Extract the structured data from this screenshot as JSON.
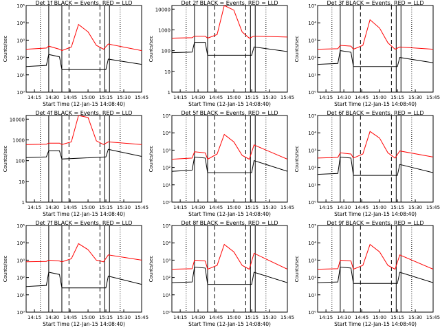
{
  "figure": {
    "x_tick_labels": [
      "14:15",
      "14:30",
      "14:45",
      "15:00",
      "15:15",
      "15:30",
      "15:45"
    ],
    "xlabel": "Start Time (12-Jan-15 14:08:40)",
    "ylabel": "Counts/sec",
    "series_colors": {
      "events": "#000000",
      "lld": "#ff0000"
    }
  },
  "chart_data": [
    {
      "type": "line",
      "title": "Det 1f BLACK = Events, RED = LLD",
      "ylog": true,
      "ylim": [
        1,
        100000
      ],
      "y_tick_labels": [
        "10⁰",
        "10¹",
        "10²",
        "10³",
        "10⁴",
        "10⁵"
      ],
      "xlabel": "Start Time (12-Jan-15 14:08:40)",
      "ylabel": "Counts/sec",
      "series": [
        {
          "color": "#000000",
          "x": [
            "14:08",
            "14:25",
            "14:27",
            "14:36",
            "14:38",
            "15:15",
            "15:17",
            "15:45"
          ],
          "y": [
            30,
            35,
            150,
            110,
            20,
            20,
            80,
            40
          ]
        },
        {
          "color": "#ff0000",
          "x": [
            "14:08",
            "14:25",
            "14:27",
            "14:36",
            "14:38",
            "14:46",
            "14:52",
            "15:00",
            "15:07",
            "15:13",
            "15:17",
            "15:45"
          ],
          "y": [
            300,
            350,
            450,
            300,
            250,
            400,
            8000,
            3000,
            500,
            300,
            600,
            250
          ]
        }
      ]
    },
    {
      "type": "line",
      "title": "Det 2f BLACK = Events, RED = LLD",
      "ylog": true,
      "ylim": [
        1,
        15000
      ],
      "y_tick_labels": [
        "1",
        "10",
        "100",
        "1000",
        "10000"
      ],
      "xlabel": "Start Time (12-Jan-15 14:08:40)",
      "ylabel": "Counts/sec",
      "series": [
        {
          "color": "#000000",
          "x": [
            "14:08",
            "14:25",
            "14:27",
            "14:36",
            "14:38",
            "15:15",
            "15:17",
            "15:45"
          ],
          "y": [
            80,
            85,
            250,
            250,
            60,
            60,
            150,
            90
          ]
        },
        {
          "color": "#ff0000",
          "x": [
            "14:08",
            "14:25",
            "14:27",
            "14:36",
            "14:38",
            "14:46",
            "14:52",
            "15:00",
            "15:07",
            "15:13",
            "15:17",
            "15:45"
          ],
          "y": [
            400,
            420,
            500,
            500,
            400,
            600,
            15000,
            9000,
            800,
            400,
            500,
            450
          ]
        }
      ]
    },
    {
      "type": "line",
      "title": "Det 3f BLACK = Events, RED = LLD",
      "ylog": true,
      "ylim": [
        1,
        100000
      ],
      "y_tick_labels": [
        "10⁰",
        "10¹",
        "10²",
        "10³",
        "10⁴",
        "10⁵"
      ],
      "xlabel": "Start Time (12-Jan-15 14:08:40)",
      "ylabel": "Counts/sec",
      "series": [
        {
          "color": "#000000",
          "x": [
            "14:08",
            "14:25",
            "14:27",
            "14:36",
            "14:38",
            "15:15",
            "15:17",
            "15:45"
          ],
          "y": [
            40,
            45,
            250,
            200,
            30,
            30,
            100,
            50
          ]
        },
        {
          "color": "#ff0000",
          "x": [
            "14:08",
            "14:25",
            "14:27",
            "14:36",
            "14:38",
            "14:46",
            "14:52",
            "15:00",
            "15:07",
            "15:13",
            "15:17",
            "15:45"
          ],
          "y": [
            300,
            320,
            500,
            450,
            300,
            500,
            15000,
            5000,
            700,
            300,
            400,
            300
          ]
        }
      ]
    },
    {
      "type": "line",
      "title": "Det 4f BLACK = Events, RED = LLD",
      "ylog": true,
      "ylim": [
        1,
        15000
      ],
      "y_tick_labels": [
        "1",
        "10",
        "100",
        "1000",
        "10000"
      ],
      "xlabel": "Start Time (12-Jan-15 14:08:40)",
      "ylabel": "Counts/sec",
      "series": [
        {
          "color": "#000000",
          "x": [
            "14:08",
            "14:25",
            "14:27",
            "14:36",
            "14:38",
            "15:15",
            "15:17",
            "15:45"
          ],
          "y": [
            140,
            150,
            300,
            300,
            120,
            150,
            350,
            160
          ]
        },
        {
          "color": "#ff0000",
          "x": [
            "14:08",
            "14:25",
            "14:27",
            "14:36",
            "14:38",
            "14:46",
            "14:52",
            "15:00",
            "15:07",
            "15:13",
            "15:17",
            "15:45"
          ],
          "y": [
            600,
            620,
            700,
            700,
            600,
            800,
            15000,
            12000,
            900,
            600,
            800,
            600
          ]
        }
      ]
    },
    {
      "type": "line",
      "title": "Det 5f BLACK = Events, RED = LLD",
      "ylog": true,
      "ylim": [
        1,
        100000
      ],
      "y_tick_labels": [
        "10⁰",
        "10¹",
        "10²",
        "10³",
        "10⁴",
        "10⁵"
      ],
      "xlabel": "Start Time (12-Jan-15 14:08:40)",
      "ylabel": "Counts/sec",
      "series": [
        {
          "color": "#000000",
          "x": [
            "14:08",
            "14:25",
            "14:27",
            "14:36",
            "14:38",
            "15:15",
            "15:17",
            "15:45"
          ],
          "y": [
            60,
            70,
            400,
            350,
            50,
            50,
            250,
            60
          ]
        },
        {
          "color": "#ff0000",
          "x": [
            "14:08",
            "14:25",
            "14:27",
            "14:36",
            "14:38",
            "14:46",
            "14:52",
            "15:00",
            "15:07",
            "15:13",
            "15:17",
            "15:45"
          ],
          "y": [
            300,
            350,
            800,
            700,
            300,
            600,
            8000,
            3000,
            500,
            300,
            2000,
            300
          ]
        }
      ]
    },
    {
      "type": "line",
      "title": "Det 6f BLACK = Events, RED = LLD",
      "ylog": true,
      "ylim": [
        1,
        100000
      ],
      "y_tick_labels": [
        "10⁰",
        "10¹",
        "10²",
        "10³",
        "10⁴",
        "10⁵"
      ],
      "xlabel": "Start Time (12-Jan-15 14:08:40)",
      "ylabel": "Counts/sec",
      "series": [
        {
          "color": "#000000",
          "x": [
            "14:08",
            "14:25",
            "14:27",
            "14:36",
            "14:38",
            "15:15",
            "15:17",
            "15:45"
          ],
          "y": [
            40,
            45,
            400,
            350,
            35,
            35,
            150,
            50
          ]
        },
        {
          "color": "#ff0000",
          "x": [
            "14:08",
            "14:25",
            "14:27",
            "14:36",
            "14:38",
            "14:46",
            "14:52",
            "15:00",
            "15:07",
            "15:13",
            "15:17",
            "15:45"
          ],
          "y": [
            350,
            380,
            700,
            600,
            350,
            600,
            12000,
            5000,
            700,
            350,
            900,
            400
          ]
        }
      ]
    },
    {
      "type": "line",
      "title": "Det 7f BLACK = Events, RED = LLD",
      "ylog": true,
      "ylim": [
        1,
        100000
      ],
      "y_tick_labels": [
        "10⁰",
        "10¹",
        "10²",
        "10³",
        "10⁴",
        "10⁵"
      ],
      "xlabel": "Start Time (12-Jan-15 14:08:40)",
      "ylabel": "Counts/sec",
      "series": [
        {
          "color": "#000000",
          "x": [
            "14:08",
            "14:25",
            "14:27",
            "14:36",
            "14:38",
            "15:15",
            "15:17",
            "15:45"
          ],
          "y": [
            30,
            35,
            200,
            150,
            25,
            25,
            120,
            40
          ]
        },
        {
          "color": "#ff0000",
          "x": [
            "14:08",
            "14:25",
            "14:27",
            "14:36",
            "14:38",
            "14:46",
            "14:52",
            "15:00",
            "15:07",
            "15:13",
            "15:17",
            "15:45"
          ],
          "y": [
            800,
            850,
            1000,
            900,
            800,
            1200,
            9000,
            4000,
            1000,
            800,
            2000,
            1000
          ]
        }
      ]
    },
    {
      "type": "line",
      "title": "Det 8f BLACK = Events, RED = LLD",
      "ylog": true,
      "ylim": [
        1,
        100000
      ],
      "y_tick_labels": [
        "10⁰",
        "10¹",
        "10²",
        "10³",
        "10⁴",
        "10⁵"
      ],
      "xlabel": "Start Time (12-Jan-15 14:08:40)",
      "ylabel": "Counts/sec",
      "series": [
        {
          "color": "#000000",
          "x": [
            "14:08",
            "14:25",
            "14:27",
            "14:36",
            "14:38",
            "15:15",
            "15:17",
            "15:45"
          ],
          "y": [
            50,
            55,
            400,
            350,
            40,
            40,
            200,
            50
          ]
        },
        {
          "color": "#ff0000",
          "x": [
            "14:08",
            "14:25",
            "14:27",
            "14:36",
            "14:38",
            "14:46",
            "14:52",
            "15:00",
            "15:07",
            "15:13",
            "15:17",
            "15:45"
          ],
          "y": [
            300,
            320,
            1000,
            900,
            300,
            500,
            8000,
            3000,
            500,
            300,
            2500,
            300
          ]
        }
      ]
    },
    {
      "type": "line",
      "title": "Det 9f BLACK = Events, RED = LLD",
      "ylog": true,
      "ylim": [
        1,
        100000
      ],
      "y_tick_labels": [
        "10⁰",
        "10¹",
        "10²",
        "10³",
        "10⁴",
        "10⁵"
      ],
      "xlabel": "Start Time (12-Jan-15 14:08:40)",
      "ylabel": "Counts/sec",
      "series": [
        {
          "color": "#000000",
          "x": [
            "14:08",
            "14:25",
            "14:27",
            "14:36",
            "14:38",
            "15:15",
            "15:17",
            "15:45"
          ],
          "y": [
            50,
            55,
            400,
            350,
            45,
            45,
            200,
            50
          ]
        },
        {
          "color": "#ff0000",
          "x": [
            "14:08",
            "14:25",
            "14:27",
            "14:36",
            "14:38",
            "14:46",
            "14:52",
            "15:00",
            "15:07",
            "15:13",
            "15:17",
            "15:45"
          ],
          "y": [
            300,
            320,
            1000,
            900,
            300,
            500,
            8000,
            3000,
            500,
            300,
            2000,
            300
          ]
        }
      ]
    }
  ]
}
